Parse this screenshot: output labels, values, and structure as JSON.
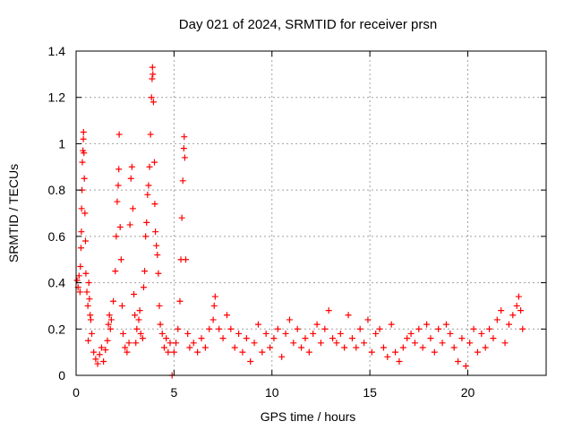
{
  "chart_data": {
    "type": "scatter",
    "title": "Day 021 of 2024, SRMTID for receiver prsn",
    "xlabel": "GPS time / hours",
    "ylabel": "SRMTID / TECUs",
    "xlim": [
      0,
      24
    ],
    "ylim": [
      0,
      1.4
    ],
    "grid": true,
    "marker": "+",
    "x_ticks": [
      0,
      5,
      10,
      15,
      20
    ],
    "y_ticks": [
      0,
      0.2,
      0.4,
      0.6,
      0.8,
      1,
      1.2,
      1.4
    ],
    "x_tick_labels": [
      "0",
      "5",
      "10",
      "15",
      "20"
    ],
    "y_tick_labels": [
      "0",
      "0.2",
      "0.4",
      "0.6",
      "0.8",
      "1",
      "1.2",
      "1.4"
    ],
    "series": [
      {
        "name": "SRMTID",
        "color": "#ff0000",
        "points": [
          [
            0.05,
            0.41
          ],
          [
            0.1,
            0.38
          ],
          [
            0.15,
            0.43
          ],
          [
            0.2,
            0.36
          ],
          [
            0.22,
            0.47
          ],
          [
            0.25,
            0.55
          ],
          [
            0.27,
            0.62
          ],
          [
            0.28,
            0.72
          ],
          [
            0.3,
            0.8
          ],
          [
            0.32,
            0.92
          ],
          [
            0.35,
            0.97
          ],
          [
            0.37,
            1.02
          ],
          [
            0.38,
            1.05
          ],
          [
            0.4,
            0.96
          ],
          [
            0.42,
            0.85
          ],
          [
            0.45,
            0.7
          ],
          [
            0.48,
            0.58
          ],
          [
            0.5,
            0.44
          ],
          [
            0.55,
            0.36
          ],
          [
            0.6,
            0.3
          ],
          [
            0.62,
            0.15
          ],
          [
            0.65,
            0.4
          ],
          [
            0.68,
            0.33
          ],
          [
            0.72,
            0.26
          ],
          [
            0.75,
            0.24
          ],
          [
            0.8,
            0.18
          ],
          [
            0.9,
            0.1
          ],
          [
            1.0,
            0.07
          ],
          [
            1.1,
            0.05
          ],
          [
            1.2,
            0.09
          ],
          [
            1.3,
            0.12
          ],
          [
            1.4,
            0.06
          ],
          [
            1.5,
            0.11
          ],
          [
            1.6,
            0.15
          ],
          [
            1.65,
            0.22
          ],
          [
            1.7,
            0.26
          ],
          [
            1.75,
            0.2
          ],
          [
            1.8,
            0.24
          ],
          [
            1.9,
            0.32
          ],
          [
            2.0,
            0.45
          ],
          [
            2.05,
            0.6
          ],
          [
            2.1,
            0.75
          ],
          [
            2.15,
            0.82
          ],
          [
            2.18,
            0.89
          ],
          [
            2.2,
            1.04
          ],
          [
            2.25,
            0.64
          ],
          [
            2.3,
            0.5
          ],
          [
            2.35,
            0.3
          ],
          [
            2.4,
            0.18
          ],
          [
            2.5,
            0.12
          ],
          [
            2.6,
            0.1
          ],
          [
            2.7,
            0.14
          ],
          [
            2.75,
            0.65
          ],
          [
            2.8,
            0.85
          ],
          [
            2.85,
            0.9
          ],
          [
            2.9,
            0.72
          ],
          [
            2.95,
            0.35
          ],
          [
            3.0,
            0.26
          ],
          [
            3.05,
            0.14
          ],
          [
            3.1,
            0.2
          ],
          [
            3.2,
            0.24
          ],
          [
            3.25,
            0.28
          ],
          [
            3.3,
            0.18
          ],
          [
            3.4,
            0.16
          ],
          [
            3.45,
            0.38
          ],
          [
            3.5,
            0.45
          ],
          [
            3.55,
            0.6
          ],
          [
            3.6,
            0.66
          ],
          [
            3.65,
            0.78
          ],
          [
            3.7,
            0.82
          ],
          [
            3.75,
            0.9
          ],
          [
            3.8,
            1.04
          ],
          [
            3.85,
            1.2
          ],
          [
            3.88,
            1.28
          ],
          [
            3.9,
            1.33
          ],
          [
            3.92,
            1.3
          ],
          [
            3.95,
            1.18
          ],
          [
            4.0,
            0.92
          ],
          [
            4.02,
            0.74
          ],
          [
            4.05,
            0.62
          ],
          [
            4.1,
            0.56
          ],
          [
            4.15,
            0.52
          ],
          [
            4.2,
            0.44
          ],
          [
            4.25,
            0.3
          ],
          [
            4.3,
            0.22
          ],
          [
            4.4,
            0.18
          ],
          [
            4.5,
            0.12
          ],
          [
            4.6,
            0.16
          ],
          [
            4.7,
            0.1
          ],
          [
            4.8,
            0.14
          ],
          [
            4.9,
            0.0
          ],
          [
            5.0,
            0.1
          ],
          [
            5.1,
            0.14
          ],
          [
            5.2,
            0.2
          ],
          [
            5.3,
            0.32
          ],
          [
            5.35,
            0.5
          ],
          [
            5.4,
            0.68
          ],
          [
            5.45,
            0.84
          ],
          [
            5.5,
            0.98
          ],
          [
            5.52,
            1.03
          ],
          [
            5.55,
            0.94
          ],
          [
            5.6,
            0.5
          ],
          [
            5.7,
            0.18
          ],
          [
            5.8,
            0.12
          ],
          [
            6.0,
            0.14
          ],
          [
            6.2,
            0.1
          ],
          [
            6.4,
            0.16
          ],
          [
            6.6,
            0.12
          ],
          [
            6.8,
            0.2
          ],
          [
            7.0,
            0.24
          ],
          [
            7.05,
            0.3
          ],
          [
            7.1,
            0.34
          ],
          [
            7.3,
            0.2
          ],
          [
            7.5,
            0.16
          ],
          [
            7.7,
            0.26
          ],
          [
            7.9,
            0.2
          ],
          [
            8.1,
            0.12
          ],
          [
            8.3,
            0.18
          ],
          [
            8.5,
            0.1
          ],
          [
            8.7,
            0.16
          ],
          [
            8.9,
            0.06
          ],
          [
            9.1,
            0.14
          ],
          [
            9.3,
            0.22
          ],
          [
            9.5,
            0.1
          ],
          [
            9.7,
            0.18
          ],
          [
            9.9,
            0.12
          ],
          [
            10.1,
            0.16
          ],
          [
            10.3,
            0.2
          ],
          [
            10.5,
            0.08
          ],
          [
            10.7,
            0.18
          ],
          [
            10.9,
            0.24
          ],
          [
            11.1,
            0.14
          ],
          [
            11.3,
            0.2
          ],
          [
            11.5,
            0.12
          ],
          [
            11.7,
            0.16
          ],
          [
            11.9,
            0.1
          ],
          [
            12.1,
            0.18
          ],
          [
            12.3,
            0.22
          ],
          [
            12.5,
            0.14
          ],
          [
            12.7,
            0.2
          ],
          [
            12.9,
            0.28
          ],
          [
            13.1,
            0.16
          ],
          [
            13.3,
            0.14
          ],
          [
            13.5,
            0.18
          ],
          [
            13.7,
            0.12
          ],
          [
            13.9,
            0.26
          ],
          [
            14.1,
            0.16
          ],
          [
            14.3,
            0.12
          ],
          [
            14.5,
            0.2
          ],
          [
            14.7,
            0.14
          ],
          [
            14.9,
            0.24
          ],
          [
            15.1,
            0.1
          ],
          [
            15.3,
            0.18
          ],
          [
            15.5,
            0.2
          ],
          [
            15.7,
            0.12
          ],
          [
            15.9,
            0.08
          ],
          [
            16.1,
            0.22
          ],
          [
            16.3,
            0.1
          ],
          [
            16.5,
            0.06
          ],
          [
            16.7,
            0.12
          ],
          [
            16.9,
            0.16
          ],
          [
            17.1,
            0.18
          ],
          [
            17.3,
            0.14
          ],
          [
            17.5,
            0.2
          ],
          [
            17.7,
            0.12
          ],
          [
            17.9,
            0.22
          ],
          [
            18.1,
            0.16
          ],
          [
            18.3,
            0.1
          ],
          [
            18.5,
            0.2
          ],
          [
            18.7,
            0.14
          ],
          [
            18.9,
            0.22
          ],
          [
            19.1,
            0.18
          ],
          [
            19.3,
            0.12
          ],
          [
            19.5,
            0.06
          ],
          [
            19.7,
            0.16
          ],
          [
            19.9,
            0.04
          ],
          [
            20.1,
            0.14
          ],
          [
            20.3,
            0.2
          ],
          [
            20.5,
            0.1
          ],
          [
            20.7,
            0.18
          ],
          [
            20.9,
            0.12
          ],
          [
            21.1,
            0.2
          ],
          [
            21.3,
            0.16
          ],
          [
            21.5,
            0.24
          ],
          [
            21.7,
            0.28
          ],
          [
            21.9,
            0.14
          ],
          [
            22.1,
            0.22
          ],
          [
            22.3,
            0.26
          ],
          [
            22.5,
            0.3
          ],
          [
            22.6,
            0.34
          ],
          [
            22.7,
            0.28
          ],
          [
            22.8,
            0.2
          ]
        ]
      }
    ]
  }
}
